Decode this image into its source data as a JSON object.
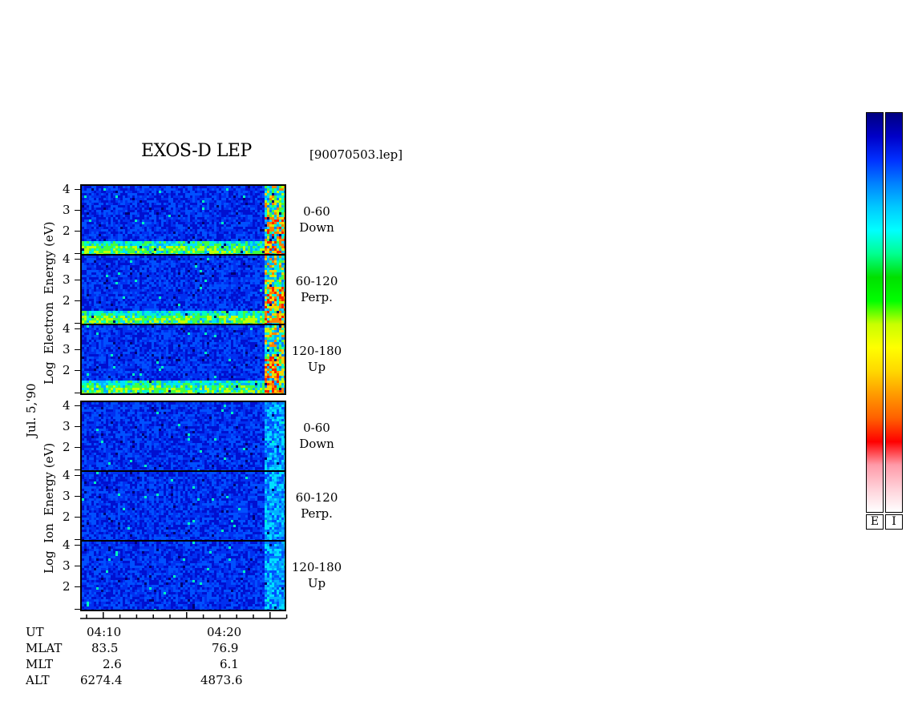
{
  "header": {
    "title": "EXOS-D LEP",
    "filename": "[90070503.lep]"
  },
  "date_label": "Jul. 5,'90",
  "electron_axis_label": "Log  Electron  Energy (eV)",
  "ion_axis_label": "Log  Ion  Energy (eV)",
  "colorbar": {
    "labels": [
      "E",
      "I"
    ],
    "colors": [
      "#ffffff",
      "#ffd0d8",
      "#ff9aa8",
      "#ff0000",
      "#ff6000",
      "#ff9a00",
      "#ffd800",
      "#ffff00",
      "#c8ff00",
      "#00ff00",
      "#00e000",
      "#00ff90",
      "#00ffff",
      "#00c8ff",
      "#0080ff",
      "#0030ff",
      "#0000c8",
      "#000080"
    ]
  },
  "orbit_info": {
    "rows": [
      {
        "label": "UT",
        "values": [
          "04:10",
          "04:20"
        ]
      },
      {
        "label": "MLAT",
        "values": [
          "83.5",
          "76.9"
        ]
      },
      {
        "label": "MLT",
        "values": [
          "2.6",
          "6.1"
        ]
      },
      {
        "label": "ALT",
        "values": [
          "6274.4",
          "4873.6"
        ]
      }
    ]
  },
  "chart_data": {
    "type": "heatmap",
    "title": "EXOS-D LEP",
    "x_axis": {
      "label": "UT",
      "ticks": [
        "04:10",
        "04:20"
      ]
    },
    "y_ticks": [
      "4",
      "3",
      "2"
    ],
    "panels": [
      {
        "species": "Electron",
        "pitch_angle": "0-60",
        "direction": "Down"
      },
      {
        "species": "Electron",
        "pitch_angle": "60-120",
        "direction": "Perp."
      },
      {
        "species": "Electron",
        "pitch_angle": "120-180",
        "direction": "Up"
      },
      {
        "species": "Ion",
        "pitch_angle": "0-60",
        "direction": "Down"
      },
      {
        "species": "Ion",
        "pitch_angle": "60-120",
        "direction": "Perp."
      },
      {
        "species": "Ion",
        "pitch_angle": "120-180",
        "direction": "Up"
      }
    ]
  }
}
